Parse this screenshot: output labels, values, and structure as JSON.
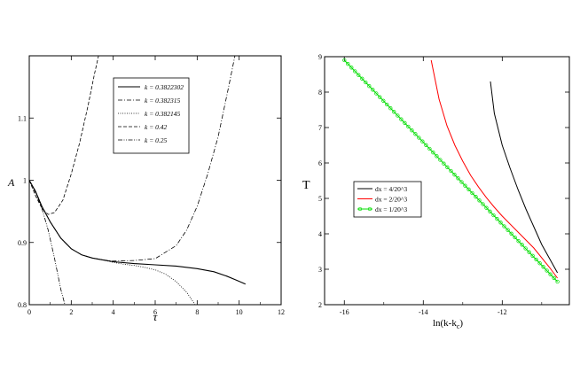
{
  "chart_data": [
    {
      "type": "line",
      "xlabel": "τ",
      "ylabel": "A",
      "xlim": [
        0,
        12
      ],
      "ylim": [
        0.8,
        1.2
      ],
      "xticks": [
        0,
        2,
        4,
        6,
        8,
        10,
        12
      ],
      "yticks": [
        0.8,
        0.9,
        1,
        1.1
      ],
      "ytick_labels": [
        "0.8",
        "0.9",
        "1",
        "1.1"
      ],
      "grid": false,
      "legend_position": "top-right",
      "series": [
        {
          "name": "k = 0.3822302",
          "dash": "solid",
          "x": [
            0,
            0.3,
            0.6,
            1,
            1.5,
            2,
            2.5,
            3,
            3.5,
            4,
            5,
            6,
            7,
            8,
            8.8,
            9.4,
            9.9,
            10.3
          ],
          "y": [
            1.0,
            0.982,
            0.958,
            0.933,
            0.907,
            0.89,
            0.88,
            0.875,
            0.872,
            0.869,
            0.866,
            0.864,
            0.862,
            0.858,
            0.853,
            0.846,
            0.839,
            0.833
          ]
        },
        {
          "name": "k = 0.382315",
          "dash": "dash-dot",
          "x": [
            0,
            0.3,
            0.6,
            1,
            1.5,
            2,
            2.5,
            3,
            3.5,
            4,
            5,
            6,
            7,
            7.5,
            8,
            8.5,
            9,
            9.5,
            9.8
          ],
          "y": [
            1.0,
            0.982,
            0.958,
            0.933,
            0.907,
            0.89,
            0.88,
            0.875,
            0.872,
            0.87,
            0.871,
            0.874,
            0.895,
            0.92,
            0.958,
            1.01,
            1.07,
            1.15,
            1.2
          ]
        },
        {
          "name": "k = 0.382145",
          "dash": "dotted",
          "x": [
            0,
            0.3,
            0.6,
            1,
            1.5,
            2,
            2.5,
            3,
            3.5,
            4,
            4.5,
            5,
            5.5,
            6,
            6.5,
            7,
            7.5,
            7.9
          ],
          "y": [
            1.0,
            0.982,
            0.958,
            0.933,
            0.907,
            0.89,
            0.88,
            0.875,
            0.872,
            0.868,
            0.865,
            0.863,
            0.86,
            0.856,
            0.849,
            0.837,
            0.82,
            0.8
          ]
        },
        {
          "name": "k = 0.42",
          "dash": "dashed",
          "x": [
            0,
            0.3,
            0.6,
            0.9,
            1.2,
            1.6,
            2,
            2.4,
            2.8,
            3.1,
            3.3
          ],
          "y": [
            1.0,
            0.975,
            0.955,
            0.945,
            0.948,
            0.968,
            1.01,
            1.06,
            1.12,
            1.17,
            1.2
          ]
        },
        {
          "name": "k = 0.25",
          "dash": "dash-dot-dot",
          "x": [
            0,
            0.3,
            0.6,
            0.9,
            1.2,
            1.5,
            1.7
          ],
          "y": [
            1.0,
            0.98,
            0.955,
            0.92,
            0.875,
            0.825,
            0.8
          ]
        }
      ]
    },
    {
      "type": "line",
      "xlabel": "ln(k-k",
      "xlabel_sub": "c",
      "xlabel_end": ")",
      "ylabel": "T",
      "xlim": [
        -16.5,
        -10.3
      ],
      "ylim": [
        2,
        9
      ],
      "xticks": [
        -16,
        -14,
        -12
      ],
      "yticks": [
        2,
        3,
        4,
        5,
        6,
        7,
        8,
        9
      ],
      "grid": false,
      "legend_position": "center-left",
      "series": [
        {
          "name": "dx = 4/20^3",
          "color": "#000000",
          "marker": "none",
          "x": [
            -12.3,
            -12.2,
            -12.0,
            -11.8,
            -11.6,
            -11.4,
            -11.2,
            -11.0,
            -10.8,
            -10.6
          ],
          "y": [
            8.3,
            7.4,
            6.5,
            5.85,
            5.25,
            4.7,
            4.2,
            3.7,
            3.3,
            2.9
          ]
        },
        {
          "name": "dx = 2/20^3",
          "color": "#ff0000",
          "marker": "none",
          "x": [
            -13.8,
            -13.6,
            -13.4,
            -13.2,
            -13.0,
            -12.8,
            -12.6,
            -12.4,
            -12.2,
            -12.0,
            -11.6,
            -11.2,
            -10.8,
            -10.6
          ],
          "y": [
            8.9,
            7.8,
            7.05,
            6.5,
            6.05,
            5.65,
            5.32,
            5.02,
            4.75,
            4.5,
            4.05,
            3.6,
            3.05,
            2.75
          ]
        },
        {
          "name": "dx = 1/20^3",
          "color": "#00dd00",
          "marker": "circle",
          "x": [
            -16.0,
            -10.6
          ],
          "y": [
            8.9,
            2.65
          ]
        }
      ]
    }
  ]
}
